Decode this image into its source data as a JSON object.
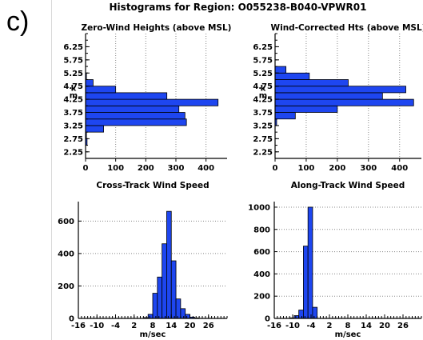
{
  "panel_label": "c)",
  "main_title": "Histograms for Region:  O055238-B040-VPWR01",
  "bar_color": "#1e46f0",
  "grid_color": "#888888",
  "chart_data": [
    {
      "type": "bar",
      "orientation": "horizontal",
      "title": "Zero-Wind Heights (above MSL)",
      "ylabel_top": "k",
      "ylabel_bottom": "m",
      "ylim": [
        2.0,
        6.75
      ],
      "xlim": [
        0,
        470
      ],
      "yticks": [
        2.25,
        2.75,
        3.25,
        3.75,
        4.25,
        4.75,
        5.25,
        5.75,
        6.25
      ],
      "ytick_labels": [
        "2.25",
        "2.75",
        "3.25",
        "3.75",
        "4.25",
        "4.75",
        "5.25",
        "5.75",
        "6.25"
      ],
      "xticks": [
        0,
        100,
        200,
        300,
        400
      ],
      "xtick_labels": [
        "0",
        "100",
        "200",
        "300",
        "400"
      ],
      "bin_width": 0.25,
      "bins": [
        2.625,
        2.875,
        3.125,
        3.375,
        3.625,
        3.875,
        4.125,
        4.375,
        4.625,
        4.875,
        5.125
      ],
      "values": [
        5,
        3,
        60,
        335,
        330,
        310,
        440,
        270,
        100,
        25,
        3
      ]
    },
    {
      "type": "bar",
      "orientation": "horizontal",
      "title": "Wind-Corrected Hts (above MSL)",
      "ylabel_top": "k",
      "ylabel_bottom": "m",
      "ylim": [
        2.0,
        6.75
      ],
      "xlim": [
        0,
        470
      ],
      "yticks": [
        2.25,
        2.75,
        3.25,
        3.75,
        4.25,
        4.75,
        5.25,
        5.75,
        6.25
      ],
      "ytick_labels": [
        "2.25",
        "2.75",
        "3.25",
        "3.75",
        "4.25",
        "4.75",
        "5.25",
        "5.75",
        "6.25"
      ],
      "xticks": [
        0,
        100,
        200,
        300,
        400
      ],
      "xtick_labels": [
        "0",
        "100",
        "200",
        "300",
        "400"
      ],
      "bin_width": 0.25,
      "bins": [
        3.375,
        3.625,
        3.875,
        4.125,
        4.375,
        4.625,
        4.875,
        5.125,
        5.375
      ],
      "values": [
        5,
        65,
        200,
        445,
        345,
        420,
        235,
        110,
        35
      ]
    },
    {
      "type": "bar",
      "orientation": "vertical",
      "title": "Cross-Track Wind Speed",
      "xlabel": "m/sec",
      "xlim": [
        -16,
        32
      ],
      "ylim": [
        0,
        720
      ],
      "xticks": [
        -16,
        -10,
        -4,
        2,
        8,
        14,
        20,
        26
      ],
      "xtick_labels": [
        "-16",
        "-10",
        "-4",
        "2",
        "8",
        "14",
        "20",
        "26"
      ],
      "yticks": [
        0,
        200,
        400,
        600
      ],
      "ytick_labels": [
        "0",
        "200",
        "400",
        "600"
      ],
      "bin_width": 1.5,
      "bins": [
        5.75,
        7.25,
        8.75,
        10.25,
        11.75,
        13.25,
        14.75,
        16.25,
        17.75,
        19.25,
        20.75,
        22.25
      ],
      "values": [
        5,
        25,
        155,
        255,
        460,
        660,
        355,
        120,
        60,
        25,
        8,
        3
      ]
    },
    {
      "type": "bar",
      "orientation": "vertical",
      "title": "Along-Track Wind Speed",
      "xlabel": "m/sec",
      "xlim": [
        -16,
        32
      ],
      "ylim": [
        0,
        1050
      ],
      "xticks": [
        -16,
        -10,
        -4,
        2,
        8,
        14,
        20,
        26
      ],
      "xtick_labels": [
        "-16",
        "-10",
        "-4",
        "2",
        "8",
        "14",
        "20",
        "26"
      ],
      "yticks": [
        0,
        200,
        400,
        600,
        800,
        1000
      ],
      "ytick_labels": [
        "0",
        "200",
        "400",
        "600",
        "800",
        "1000"
      ],
      "bin_width": 1.5,
      "bins": [
        -10.25,
        -8.75,
        -7.25,
        -5.75,
        -4.25,
        -2.75
      ],
      "values": [
        5,
        25,
        75,
        650,
        1000,
        100
      ]
    }
  ]
}
